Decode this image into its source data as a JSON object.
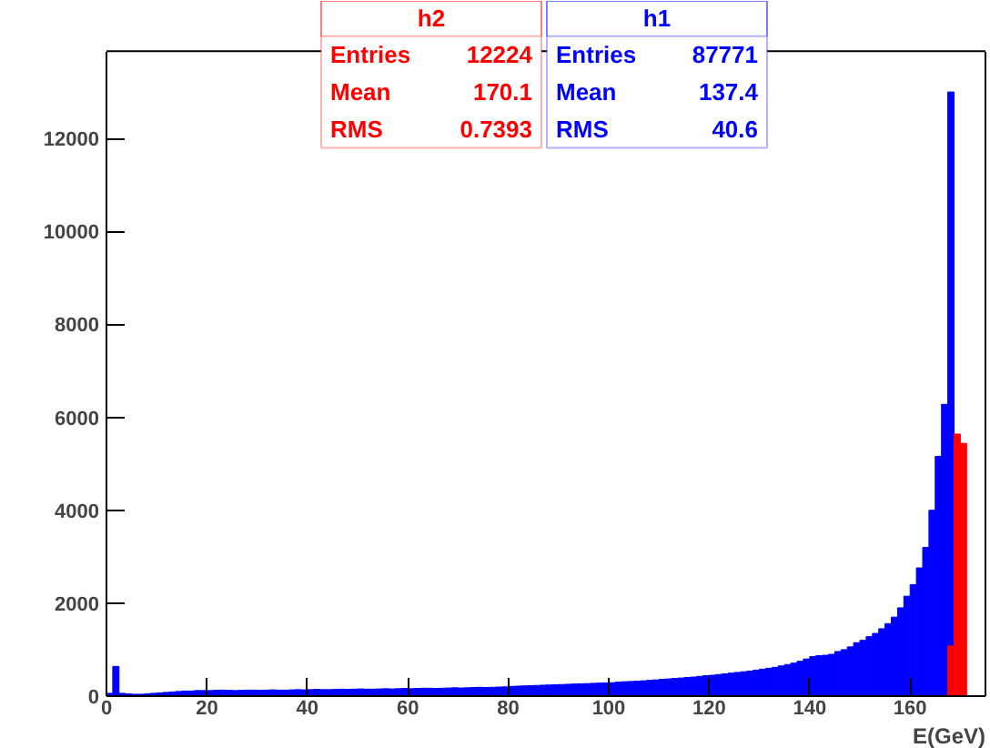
{
  "chart_data": {
    "type": "histogram",
    "xlabel": "E(GeV)",
    "bins": [
      0,
      1.25,
      2.5,
      3.75,
      5,
      6.25,
      7.5,
      8.75,
      10,
      11.25,
      12.5,
      13.75,
      15,
      16.25,
      17.5,
      18.75,
      20,
      21.25,
      22.5,
      23.75,
      25,
      26.25,
      27.5,
      28.75,
      30,
      31.25,
      32.5,
      33.75,
      35,
      36.25,
      37.5,
      38.75,
      40,
      41.25,
      42.5,
      43.75,
      45,
      46.25,
      47.5,
      48.75,
      50,
      51.25,
      52.5,
      53.75,
      55,
      56.25,
      57.5,
      58.75,
      60,
      61.25,
      62.5,
      63.75,
      65,
      66.25,
      67.5,
      68.75,
      70,
      71.25,
      72.5,
      73.75,
      75,
      76.25,
      77.5,
      78.75,
      80,
      81.25,
      82.5,
      83.75,
      85,
      86.25,
      87.5,
      88.75,
      90,
      91.25,
      92.5,
      93.75,
      95,
      96.25,
      97.5,
      98.75,
      100,
      101.25,
      102.5,
      103.75,
      105,
      106.25,
      107.5,
      108.75,
      110,
      111.25,
      112.5,
      113.75,
      115,
      116.25,
      117.5,
      118.75,
      120,
      121.25,
      122.5,
      123.75,
      125,
      126.25,
      127.5,
      128.75,
      130,
      131.25,
      132.5,
      133.75,
      135,
      136.25,
      137.5,
      138.75,
      140,
      141.25,
      142.5,
      143.75,
      145,
      146.25,
      147.5,
      148.75,
      150,
      151.25,
      152.5,
      153.75,
      155,
      156.25,
      157.5,
      158.75,
      160,
      161.25,
      162.5,
      163.75,
      165,
      166.25,
      167.5,
      168.75,
      170,
      171.25,
      172.5,
      173.75,
      175
    ],
    "series": [
      {
        "name": "h1",
        "color": "#0000ff",
        "values": [
          60,
          640,
          60,
          50,
          40,
          40,
          50,
          60,
          70,
          80,
          90,
          100,
          110,
          110,
          120,
          120,
          120,
          125,
          130,
          125,
          120,
          125,
          130,
          130,
          125,
          130,
          135,
          130,
          130,
          135,
          140,
          135,
          140,
          145,
          140,
          140,
          145,
          150,
          145,
          150,
          155,
          150,
          150,
          155,
          160,
          155,
          160,
          165,
          160,
          165,
          170,
          170,
          165,
          170,
          175,
          180,
          175,
          180,
          185,
          190,
          185,
          190,
          195,
          200,
          210,
          215,
          220,
          225,
          230,
          235,
          240,
          245,
          250,
          255,
          260,
          265,
          270,
          275,
          280,
          285,
          290,
          300,
          310,
          315,
          320,
          330,
          340,
          350,
          360,
          370,
          380,
          390,
          400,
          410,
          425,
          440,
          450,
          465,
          480,
          495,
          510,
          525,
          540,
          560,
          580,
          600,
          620,
          650,
          680,
          710,
          750,
          800,
          850,
          870,
          880,
          900,
          960,
          1000,
          1060,
          1150,
          1200,
          1280,
          1350,
          1450,
          1560,
          1700,
          1900,
          2150,
          2400,
          2760,
          3200,
          4000,
          5160,
          6280,
          13000,
          0,
          0,
          0,
          0,
          0
        ]
      },
      {
        "name": "h2",
        "color": "#ff0000",
        "values": [
          0,
          0,
          0,
          0,
          0,
          0,
          0,
          0,
          0,
          0,
          0,
          0,
          0,
          0,
          0,
          0,
          0,
          0,
          0,
          0,
          0,
          0,
          0,
          0,
          0,
          0,
          0,
          0,
          0,
          0,
          0,
          0,
          0,
          0,
          0,
          0,
          0,
          0,
          0,
          0,
          0,
          0,
          0,
          0,
          0,
          0,
          0,
          0,
          0,
          0,
          0,
          0,
          0,
          0,
          0,
          0,
          0,
          0,
          0,
          0,
          0,
          0,
          0,
          0,
          0,
          0,
          0,
          0,
          0,
          0,
          0,
          0,
          0,
          0,
          0,
          0,
          0,
          0,
          0,
          0,
          0,
          0,
          0,
          0,
          0,
          0,
          0,
          0,
          0,
          0,
          0,
          0,
          0,
          0,
          0,
          0,
          0,
          0,
          0,
          0,
          0,
          0,
          0,
          0,
          0,
          0,
          0,
          0,
          0,
          0,
          0,
          0,
          0,
          0,
          0,
          0,
          0,
          0,
          0,
          0,
          0,
          0,
          0,
          0,
          0,
          0,
          0,
          0,
          0,
          0,
          0,
          0,
          0,
          0,
          1080,
          5640,
          5440,
          0,
          0,
          0
        ]
      }
    ],
    "annotations": [
      "Entries 12224",
      "Mean 170.1",
      "RMS 0.7393",
      "Entries 87771",
      "Mean 137.4",
      "RMS 40.6"
    ],
    "xlim": [
      0,
      175
    ],
    "ylim": [
      0,
      13880
    ],
    "xticks": [
      0,
      20,
      40,
      60,
      80,
      100,
      120,
      140,
      160
    ],
    "yticks": [
      0,
      2000,
      4000,
      6000,
      8000,
      10000,
      12000
    ],
    "grid": false
  }
}
